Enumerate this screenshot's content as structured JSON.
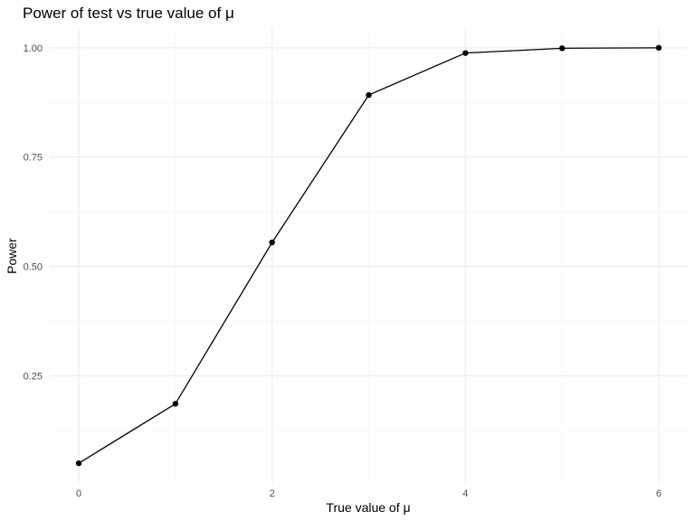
{
  "chart_data": {
    "type": "line",
    "title": "Power of test vs true value of μ",
    "xlabel": "True value of μ",
    "ylabel": "Power",
    "x": [
      0,
      1,
      2,
      3,
      4,
      5,
      6
    ],
    "series": [
      {
        "values": [
          0.05,
          0.186,
          0.555,
          0.892,
          0.988,
          0.999,
          1.0
        ]
      }
    ],
    "xlim": [
      -0.3,
      6.3
    ],
    "ylim": [
      0.0048,
      1.0452
    ],
    "x_ticks": [
      0,
      2,
      4,
      6
    ],
    "x_tick_labels": [
      "0",
      "2",
      "4",
      "6"
    ],
    "y_ticks": [
      0.25,
      0.5,
      0.75,
      1.0
    ],
    "y_tick_labels": [
      "0.25",
      "0.50",
      "0.75",
      "1.00"
    ],
    "grid": true,
    "legend": "none",
    "line_color": "#000000",
    "grid_color": "#ebebeb"
  }
}
